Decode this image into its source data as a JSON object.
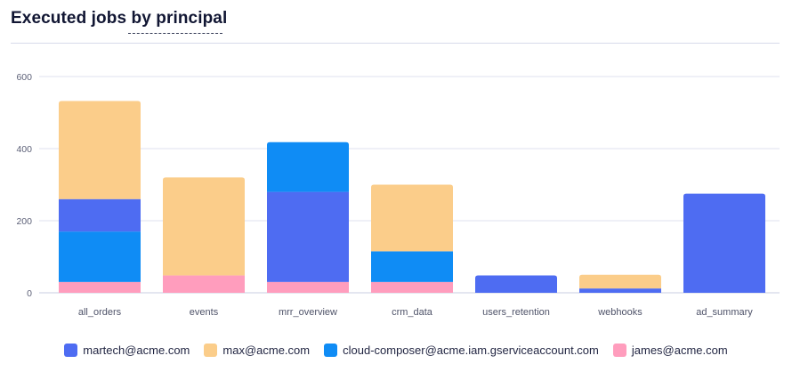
{
  "header": {
    "title": "Executed jobs by principal"
  },
  "chart_data": {
    "type": "bar",
    "stacked": true,
    "title": "Executed jobs by principal",
    "xlabel": "",
    "ylabel": "",
    "ylim": [
      0,
      600
    ],
    "yticks": [
      0,
      200,
      400,
      600
    ],
    "grid": true,
    "legend_position": "bottom",
    "categories": [
      "all_orders",
      "events",
      "mrr_overview",
      "crm_data",
      "users_retention",
      "webhooks",
      "ad_summary"
    ],
    "series": [
      {
        "name": "james@acme.com",
        "color": "#FF9DBD",
        "values": [
          30,
          48,
          30,
          30,
          0,
          0,
          0
        ]
      },
      {
        "name": "cloud-composer@acme.iam.gserviceaccount.com",
        "color": "#0F8CF5",
        "values": [
          140,
          0,
          0,
          85,
          0,
          0,
          0
        ]
      },
      {
        "name": "martech@acme.com",
        "color": "#4E6CF2",
        "values": [
          90,
          0,
          250,
          0,
          48,
          12,
          275
        ]
      },
      {
        "name": "max@acme.com",
        "color": "#FBCD8A",
        "values": [
          272,
          272,
          0,
          185,
          0,
          38,
          0
        ]
      },
      {
        "name": "cloud-composer@acme.iam.gserviceaccount.com",
        "color": "#0F8CF5",
        "values": [
          0,
          0,
          138,
          0,
          0,
          0,
          0
        ]
      }
    ]
  },
  "legend": {
    "items": [
      {
        "label": "martech@acme.com",
        "color": "#4E6CF2"
      },
      {
        "label": "max@acme.com",
        "color": "#FBCD8A"
      },
      {
        "label": "cloud-composer@acme.iam.gserviceaccount.com",
        "color": "#0F8CF5"
      },
      {
        "label": "james@acme.com",
        "color": "#FF9DBD"
      }
    ]
  }
}
